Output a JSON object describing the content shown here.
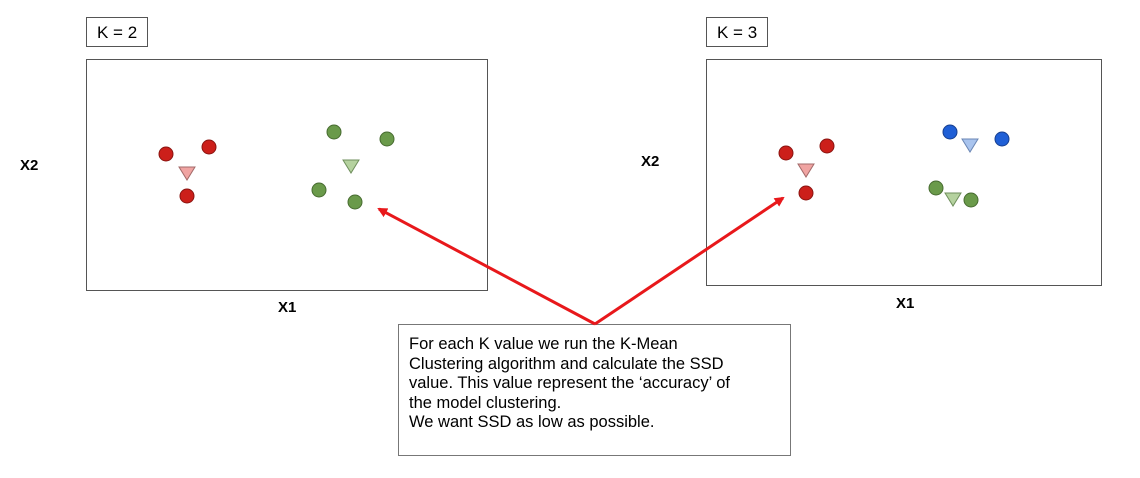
{
  "left": {
    "k_label": "K = 2",
    "x_label": "X1",
    "y_label": "X2"
  },
  "right": {
    "k_label": "K = 3",
    "x_label": "X1",
    "y_label": "X2"
  },
  "note": {
    "text": "For each K value we run the K-Mean\nClustering algorithm and calculate the SSD\nvalue. This value represent the ‘accuracy’ of\nthe model clustering.\nWe want SSD as low as possible."
  },
  "colors": {
    "red": "#cc1f1a",
    "red_centroid": "#f0a4a2",
    "green": "#6a9a4a",
    "green_centroid": "#b5d29f",
    "blue": "#1f5fd6",
    "blue_centroid": "#a9c4ee",
    "arrow": "#e8181b"
  }
}
